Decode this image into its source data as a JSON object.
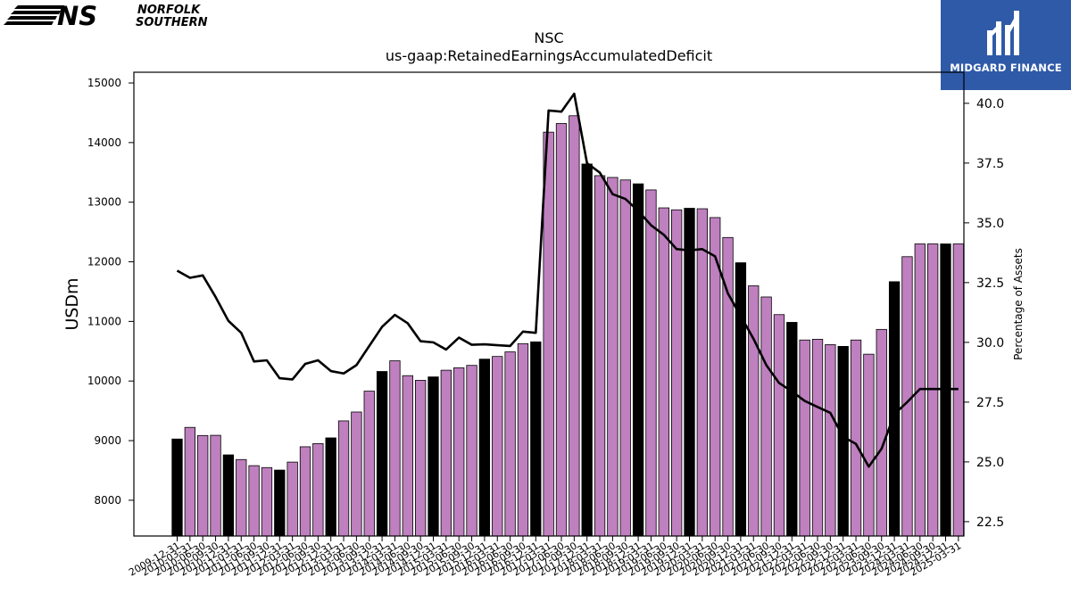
{
  "branding": {
    "company_logo_text_line1": "NORFOLK",
    "company_logo_text_line2": "SOUTHERN",
    "company_logo_mark": "NS",
    "watermark_text": "MIDGARD FINANCE"
  },
  "chart_data": {
    "type": "bar",
    "title": "NSC",
    "subtitle": "us-gaap:RetainedEarningsAccumulatedDeficit",
    "ylabel": "USDm",
    "y2label": "Percentage of Assets",
    "ylim": [
      7400,
      15180
    ],
    "y2lim": [
      21.9,
      41.3
    ],
    "yticks": [
      8000,
      9000,
      10000,
      11000,
      12000,
      13000,
      14000,
      15000
    ],
    "y2ticks": [
      22.5,
      25.0,
      27.5,
      30.0,
      32.5,
      35.0,
      37.5,
      40.0
    ],
    "y2tick_labels": [
      "22.5",
      "25.0",
      "27.5",
      "30.0",
      "32.5",
      "35.0",
      "37.5",
      "40.0"
    ],
    "grid": false,
    "colors": {
      "annual_bar": "#000000",
      "quarter_bar": "#bf80bf",
      "bar_edge": "#000000",
      "line": "#000000"
    },
    "categories": [
      "2009-12-31",
      "2010-03-31",
      "2010-06-30",
      "2010-09-30",
      "2010-12-31",
      "2011-03-31",
      "2011-06-30",
      "2011-09-30",
      "2011-12-31",
      "2012-03-31",
      "2012-06-30",
      "2012-09-30",
      "2012-12-31",
      "2013-03-31",
      "2013-06-30",
      "2013-09-30",
      "2013-12-31",
      "2014-03-31",
      "2014-06-30",
      "2014-09-30",
      "2014-12-31",
      "2015-03-31",
      "2015-06-30",
      "2015-09-30",
      "2015-12-31",
      "2016-03-31",
      "2016-06-30",
      "2016-09-30",
      "2016-12-31",
      "2017-03-31",
      "2017-06-30",
      "2017-09-30",
      "2017-12-31",
      "2018-03-31",
      "2018-06-30",
      "2018-09-30",
      "2018-12-31",
      "2019-03-31",
      "2019-06-30",
      "2019-09-30",
      "2019-12-31",
      "2020-03-31",
      "2020-06-30",
      "2020-09-30",
      "2020-12-31",
      "2021-03-31",
      "2021-06-30",
      "2021-09-30",
      "2021-12-31",
      "2022-03-31",
      "2022-06-30",
      "2022-09-30",
      "2022-12-31",
      "2023-03-31",
      "2023-06-30",
      "2023-09-30",
      "2023-12-31",
      "2024-03-31",
      "2024-06-30",
      "2024-09-30",
      "2024-12-31",
      "2025-03-31"
    ],
    "annual_flags": [
      1,
      0,
      0,
      0,
      1,
      0,
      0,
      0,
      1,
      0,
      0,
      0,
      1,
      0,
      0,
      0,
      1,
      0,
      0,
      0,
      1,
      0,
      0,
      0,
      1,
      0,
      0,
      0,
      1,
      0,
      0,
      0,
      1,
      0,
      0,
      0,
      1,
      0,
      0,
      0,
      1,
      0,
      0,
      0,
      1,
      0,
      0,
      0,
      1,
      0,
      0,
      0,
      1,
      0,
      0,
      0,
      1,
      0,
      0,
      0,
      1,
      0
    ],
    "series": [
      {
        "name": "",
        "kind": "bar",
        "values": [
          9027,
          9222,
          9086,
          9089,
          8761,
          8683,
          8580,
          8548,
          8506,
          8640,
          8897,
          8950,
          9046,
          9331,
          9480,
          9830,
          10160,
          10339,
          10090,
          10012,
          10069,
          10181,
          10222,
          10262,
          10367,
          10412,
          10489,
          10627,
          10657,
          14175,
          14320,
          14450,
          13640,
          13445,
          13415,
          13373,
          13308,
          13206,
          12905,
          12872,
          12898,
          12890,
          12742,
          12408,
          11984,
          11597,
          11410,
          11114,
          10984,
          10688,
          10700,
          10610,
          10581,
          10688,
          10450,
          10866,
          11666,
          12086,
          12300,
          12300,
          12300,
          12300
        ]
      },
      {
        "name": "",
        "kind": "line",
        "axis": "right",
        "values": [
          33.0,
          32.7,
          32.8,
          31.9,
          30.9,
          30.4,
          29.2,
          29.25,
          28.5,
          28.45,
          29.1,
          29.25,
          28.8,
          28.7,
          29.05,
          29.85,
          30.65,
          31.15,
          30.8,
          30.05,
          30.0,
          29.7,
          30.2,
          29.9,
          29.92,
          29.88,
          29.85,
          30.45,
          30.4,
          39.7,
          39.65,
          40.4,
          37.5,
          37.1,
          36.2,
          36.0,
          35.5,
          34.9,
          34.5,
          33.9,
          33.85,
          33.9,
          33.6,
          32.05,
          31.1,
          30.15,
          29.05,
          28.3,
          27.95,
          27.55,
          27.3,
          27.05,
          26.05,
          25.75,
          24.8,
          25.55,
          27.0,
          27.5,
          28.05,
          28.05,
          28.05,
          28.05
        ]
      }
    ]
  }
}
